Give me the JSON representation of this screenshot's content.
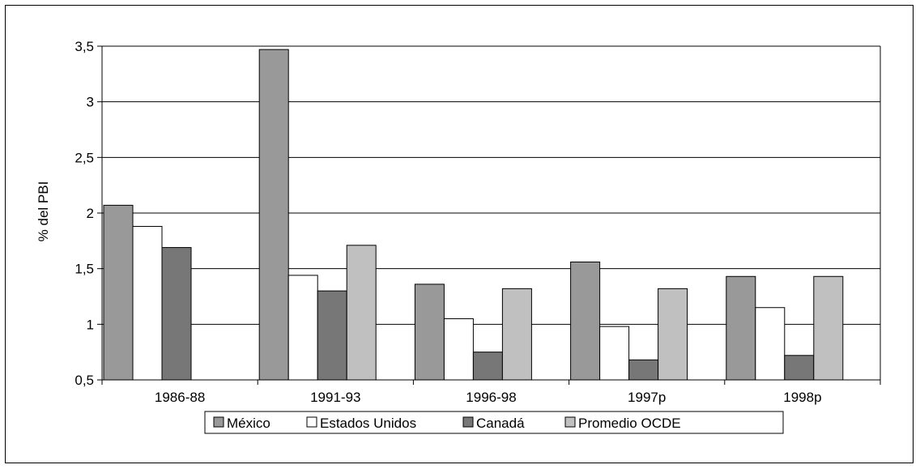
{
  "chart_data": {
    "type": "bar",
    "title": "",
    "xlabel": "",
    "ylabel": "% del PBI",
    "ylim": [
      0.5,
      3.5
    ],
    "yticks": [
      "0,5",
      "1",
      "1,5",
      "2",
      "2,5",
      "3",
      "3,5"
    ],
    "ytick_values": [
      0.5,
      1,
      1.5,
      2,
      2.5,
      3,
      3.5
    ],
    "grid": true,
    "legend_position": "bottom",
    "categories": [
      "1986-88",
      "1991-93",
      "1996-98",
      "1997p",
      "1998p"
    ],
    "series": [
      {
        "name": "México",
        "color": "#999999",
        "values": [
          2.07,
          3.47,
          1.36,
          1.56,
          1.43
        ]
      },
      {
        "name": "Estados Unidos",
        "color": "#ffffff",
        "values": [
          1.88,
          1.44,
          1.05,
          0.98,
          1.15
        ]
      },
      {
        "name": "Canadá",
        "color": "#777777",
        "values": [
          1.69,
          1.3,
          0.75,
          0.68,
          0.72
        ]
      },
      {
        "name": "Promedio OCDE",
        "color": "#c0c0c0",
        "values": [
          null,
          1.71,
          1.32,
          1.32,
          1.43
        ]
      }
    ]
  }
}
